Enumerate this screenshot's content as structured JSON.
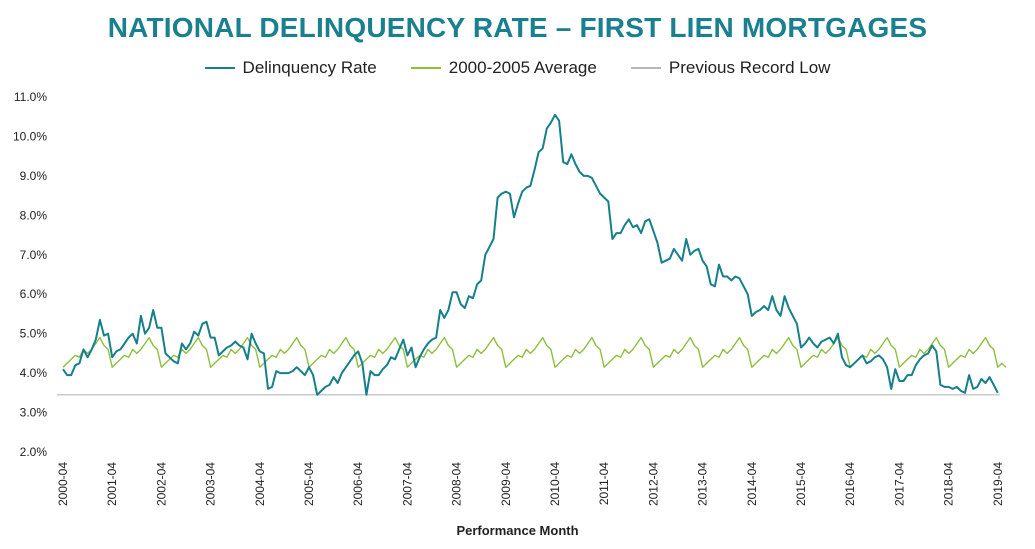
{
  "chart_data": {
    "type": "line",
    "title": "NATIONAL DELINQUENCY RATE – FIRST LIEN MORTGAGES",
    "xlabel": "Performance Month",
    "ylabel": "",
    "ylim": [
      2.0,
      11.0
    ],
    "yticks": [
      "2.0%",
      "3.0%",
      "4.0%",
      "5.0%",
      "6.0%",
      "7.0%",
      "8.0%",
      "9.0%",
      "10.0%",
      "11.0%"
    ],
    "xticks": [
      "2000-04",
      "2001-04",
      "2002-04",
      "2003-04",
      "2004-04",
      "2005-04",
      "2006-04",
      "2007-04",
      "2008-04",
      "2009-04",
      "2010-04",
      "2011-04",
      "2012-04",
      "2013-04",
      "2014-04",
      "2015-04",
      "2016-04",
      "2017-04",
      "2018-04",
      "2019-04"
    ],
    "grid": false,
    "legend_position": "top",
    "x_unit": "months since 2000-04",
    "series": [
      {
        "name": "Delinquency Rate",
        "color": "#157f8c",
        "points": [
          [
            0,
            4.1
          ],
          [
            1,
            3.95
          ],
          [
            2,
            3.95
          ],
          [
            3,
            4.2
          ],
          [
            4,
            4.25
          ],
          [
            5,
            4.6
          ],
          [
            6,
            4.4
          ],
          [
            7,
            4.6
          ],
          [
            8,
            4.85
          ],
          [
            9,
            5.35
          ],
          [
            10,
            4.95
          ],
          [
            11,
            5.0
          ],
          [
            12,
            4.4
          ],
          [
            13,
            4.55
          ],
          [
            14,
            4.6
          ],
          [
            15,
            4.75
          ],
          [
            16,
            4.9
          ],
          [
            17,
            5.0
          ],
          [
            18,
            4.75
          ],
          [
            19,
            5.45
          ],
          [
            20,
            5.0
          ],
          [
            21,
            5.15
          ],
          [
            22,
            5.6
          ],
          [
            23,
            5.15
          ],
          [
            24,
            5.15
          ],
          [
            25,
            4.5
          ],
          [
            26,
            4.4
          ],
          [
            27,
            4.3
          ],
          [
            28,
            4.25
          ],
          [
            29,
            4.75
          ],
          [
            30,
            4.6
          ],
          [
            31,
            4.75
          ],
          [
            32,
            5.05
          ],
          [
            33,
            4.95
          ],
          [
            34,
            5.25
          ],
          [
            35,
            5.3
          ],
          [
            36,
            4.9
          ],
          [
            37,
            4.9
          ],
          [
            38,
            4.45
          ],
          [
            39,
            4.55
          ],
          [
            40,
            4.65
          ],
          [
            41,
            4.7
          ],
          [
            42,
            4.8
          ],
          [
            43,
            4.7
          ],
          [
            44,
            4.65
          ],
          [
            45,
            4.35
          ],
          [
            46,
            5.0
          ],
          [
            47,
            4.75
          ],
          [
            48,
            4.55
          ],
          [
            49,
            4.5
          ],
          [
            50,
            3.6
          ],
          [
            51,
            3.65
          ],
          [
            52,
            4.05
          ],
          [
            53,
            4.0
          ],
          [
            54,
            4.0
          ],
          [
            55,
            4.0
          ],
          [
            56,
            4.05
          ],
          [
            57,
            4.15
          ],
          [
            58,
            4.05
          ],
          [
            59,
            3.95
          ],
          [
            60,
            4.15
          ],
          [
            61,
            3.95
          ],
          [
            62,
            3.45
          ],
          [
            63,
            3.55
          ],
          [
            64,
            3.65
          ],
          [
            65,
            3.7
          ],
          [
            66,
            3.9
          ],
          [
            67,
            3.75
          ],
          [
            68,
            4.0
          ],
          [
            69,
            4.15
          ],
          [
            70,
            4.3
          ],
          [
            71,
            4.45
          ],
          [
            72,
            4.55
          ],
          [
            73,
            4.25
          ],
          [
            74,
            3.45
          ],
          [
            75,
            4.05
          ],
          [
            76,
            3.95
          ],
          [
            77,
            3.95
          ],
          [
            78,
            4.1
          ],
          [
            79,
            4.2
          ],
          [
            80,
            4.4
          ],
          [
            81,
            4.35
          ],
          [
            82,
            4.6
          ],
          [
            83,
            4.85
          ],
          [
            84,
            4.45
          ],
          [
            85,
            4.65
          ],
          [
            86,
            4.15
          ],
          [
            87,
            4.4
          ],
          [
            88,
            4.6
          ],
          [
            89,
            4.75
          ],
          [
            90,
            4.85
          ],
          [
            91,
            4.9
          ],
          [
            92,
            5.6
          ],
          [
            93,
            5.4
          ],
          [
            94,
            5.6
          ],
          [
            95,
            6.05
          ],
          [
            96,
            6.05
          ],
          [
            97,
            5.75
          ],
          [
            98,
            5.65
          ],
          [
            99,
            5.95
          ],
          [
            100,
            5.9
          ],
          [
            101,
            6.25
          ],
          [
            102,
            6.35
          ],
          [
            103,
            7.0
          ],
          [
            104,
            7.2
          ],
          [
            105,
            7.4
          ],
          [
            106,
            8.45
          ],
          [
            107,
            8.55
          ],
          [
            108,
            8.6
          ],
          [
            109,
            8.55
          ],
          [
            110,
            7.95
          ],
          [
            111,
            8.3
          ],
          [
            112,
            8.6
          ],
          [
            113,
            8.7
          ],
          [
            114,
            8.75
          ],
          [
            115,
            9.15
          ],
          [
            116,
            9.6
          ],
          [
            117,
            9.7
          ],
          [
            118,
            10.2
          ],
          [
            119,
            10.35
          ],
          [
            120,
            10.55
          ],
          [
            121,
            10.4
          ],
          [
            122,
            9.35
          ],
          [
            123,
            9.3
          ],
          [
            124,
            9.55
          ],
          [
            125,
            9.3
          ],
          [
            126,
            9.1
          ],
          [
            127,
            9.0
          ],
          [
            128,
            9.0
          ],
          [
            129,
            8.95
          ],
          [
            130,
            8.75
          ],
          [
            131,
            8.55
          ],
          [
            132,
            8.45
          ],
          [
            133,
            8.35
          ],
          [
            134,
            7.4
          ],
          [
            135,
            7.55
          ],
          [
            136,
            7.55
          ],
          [
            137,
            7.75
          ],
          [
            138,
            7.9
          ],
          [
            139,
            7.7
          ],
          [
            140,
            7.75
          ],
          [
            141,
            7.55
          ],
          [
            142,
            7.85
          ],
          [
            143,
            7.9
          ],
          [
            144,
            7.6
          ],
          [
            145,
            7.3
          ],
          [
            146,
            6.8
          ],
          [
            147,
            6.85
          ],
          [
            148,
            6.9
          ],
          [
            149,
            7.15
          ],
          [
            150,
            7.0
          ],
          [
            151,
            6.85
          ],
          [
            152,
            7.4
          ],
          [
            153,
            7.0
          ],
          [
            154,
            7.1
          ],
          [
            155,
            7.15
          ],
          [
            156,
            6.85
          ],
          [
            157,
            6.7
          ],
          [
            158,
            6.25
          ],
          [
            159,
            6.2
          ],
          [
            160,
            6.75
          ],
          [
            161,
            6.45
          ],
          [
            162,
            6.45
          ],
          [
            163,
            6.35
          ],
          [
            164,
            6.45
          ],
          [
            165,
            6.4
          ],
          [
            166,
            6.2
          ],
          [
            167,
            6.0
          ],
          [
            168,
            5.45
          ],
          [
            169,
            5.55
          ],
          [
            170,
            5.6
          ],
          [
            171,
            5.7
          ],
          [
            172,
            5.6
          ],
          [
            173,
            5.95
          ],
          [
            174,
            5.6
          ],
          [
            175,
            5.45
          ],
          [
            176,
            5.95
          ],
          [
            177,
            5.65
          ],
          [
            178,
            5.45
          ],
          [
            179,
            5.25
          ],
          [
            180,
            4.65
          ],
          [
            181,
            4.75
          ],
          [
            182,
            4.9
          ],
          [
            183,
            4.75
          ],
          [
            184,
            4.65
          ],
          [
            185,
            4.8
          ],
          [
            186,
            4.85
          ],
          [
            187,
            4.9
          ],
          [
            188,
            4.75
          ],
          [
            189,
            5.0
          ],
          [
            190,
            4.4
          ],
          [
            191,
            4.2
          ],
          [
            192,
            4.15
          ],
          [
            193,
            4.25
          ],
          [
            194,
            4.35
          ],
          [
            195,
            4.45
          ],
          [
            196,
            4.25
          ],
          [
            197,
            4.3
          ],
          [
            198,
            4.4
          ],
          [
            199,
            4.45
          ],
          [
            200,
            4.35
          ],
          [
            201,
            4.15
          ],
          [
            202,
            3.6
          ],
          [
            203,
            4.1
          ],
          [
            204,
            3.8
          ],
          [
            205,
            3.8
          ],
          [
            206,
            3.95
          ],
          [
            207,
            3.95
          ],
          [
            208,
            4.2
          ],
          [
            209,
            4.35
          ],
          [
            210,
            4.45
          ],
          [
            211,
            4.5
          ],
          [
            212,
            4.7
          ],
          [
            213,
            4.55
          ],
          [
            214,
            3.7
          ],
          [
            215,
            3.65
          ],
          [
            216,
            3.65
          ],
          [
            217,
            3.6
          ],
          [
            218,
            3.65
          ],
          [
            219,
            3.55
          ],
          [
            220,
            3.5
          ],
          [
            221,
            3.95
          ],
          [
            222,
            3.6
          ],
          [
            223,
            3.65
          ],
          [
            224,
            3.85
          ],
          [
            225,
            3.75
          ],
          [
            226,
            3.9
          ],
          [
            227,
            3.7
          ],
          [
            228,
            3.5
          ]
        ]
      },
      {
        "name": "2000-2005 Average",
        "color": "#8dbf3d",
        "period": 12,
        "values": [
          4.15,
          4.25,
          4.35,
          4.45,
          4.4,
          4.6,
          4.5,
          4.6,
          4.75,
          4.9,
          4.7,
          4.6
        ],
        "x_range": [
          0,
          230
        ],
        "end_value": 4.15
      },
      {
        "name": "Previous Record Low",
        "color": "#b7b7b7",
        "value": 3.45,
        "x_range": [
          0,
          228
        ]
      }
    ]
  }
}
